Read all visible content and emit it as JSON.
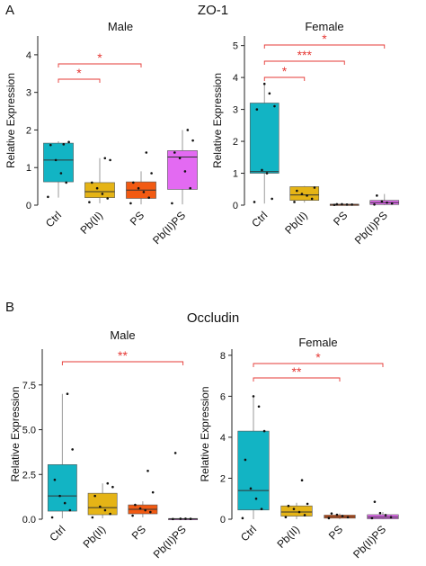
{
  "figure": {
    "panel_a_letter": "A",
    "panel_a_title": "ZO-1",
    "panel_b_letter": "B",
    "panel_b_title": "Occludin"
  },
  "colors": {
    "Ctrl": "#12B4C4",
    "Pb(II)": "#E5B416",
    "PS": "#F25A12",
    "Pb(II)PS": "#E36AF2",
    "significance": "#E53935",
    "axis": "#222222",
    "box_edge": "#555555"
  },
  "chart_data": [
    {
      "type": "box",
      "title": "Male",
      "ylabel": "Relative Expression",
      "categories": [
        "Ctrl",
        "Pb(II)",
        "PS",
        "Pb(II)PS"
      ],
      "ylim": [
        0,
        4.5
      ],
      "yticks": [
        0,
        1,
        2,
        3,
        4
      ],
      "ytick_labels": [
        "0",
        "1",
        "2",
        "3",
        "4"
      ],
      "boxes": [
        {
          "q1": 0.62,
          "median": 1.2,
          "q3": 1.65,
          "wmin": 0.2,
          "wmax": 1.7,
          "points": [
            0.22,
            0.6,
            0.85,
            1.2,
            1.6,
            1.68,
            1.62
          ]
        },
        {
          "q1": 0.2,
          "median": 0.36,
          "q3": 0.6,
          "wmin": 0.05,
          "wmax": 1.25,
          "points": [
            0.08,
            0.18,
            0.3,
            0.45,
            0.6,
            1.2,
            1.25
          ]
        },
        {
          "q1": 0.18,
          "median": 0.4,
          "q3": 0.62,
          "wmin": 0.02,
          "wmax": 0.9,
          "points": [
            0.05,
            0.2,
            0.35,
            0.45,
            0.6,
            0.85,
            1.4
          ]
        },
        {
          "q1": 0.42,
          "median": 1.28,
          "q3": 1.45,
          "wmin": 0.02,
          "wmax": 2.0,
          "points": [
            0.05,
            0.45,
            0.9,
            1.25,
            1.4,
            1.72,
            2.0
          ]
        }
      ],
      "significance": [
        {
          "from": "Ctrl",
          "to": "Pb(II)",
          "label": "*"
        },
        {
          "from": "Ctrl",
          "to": "PS",
          "label": "*"
        }
      ]
    },
    {
      "type": "box",
      "title": "Female",
      "ylabel": "Relative Expression",
      "categories": [
        "Ctrl",
        "Pb(II)",
        "PS",
        "Pb(II)PS"
      ],
      "ylim": [
        0,
        5.3
      ],
      "yticks": [
        0,
        1,
        2,
        3,
        4,
        5
      ],
      "ytick_labels": [
        "0",
        "1",
        "2",
        "3",
        "4",
        "5"
      ],
      "boxes": [
        {
          "q1": 1.0,
          "median": 1.05,
          "q3": 3.2,
          "wmin": 0.05,
          "wmax": 3.8,
          "points": [
            0.1,
            0.2,
            1.0,
            1.1,
            3.0,
            3.1,
            3.5,
            3.8
          ]
        },
        {
          "q1": 0.15,
          "median": 0.32,
          "q3": 0.58,
          "wmin": 0.08,
          "wmax": 0.6,
          "points": [
            0.1,
            0.2,
            0.3,
            0.35,
            0.45,
            0.55
          ]
        },
        {
          "q1": 0.01,
          "median": 0.02,
          "q3": 0.03,
          "wmin": 0.0,
          "wmax": 0.04,
          "points": [
            0.01,
            0.02,
            0.02,
            0.03,
            0.03
          ]
        },
        {
          "q1": 0.02,
          "median": 0.08,
          "q3": 0.15,
          "wmin": 0.0,
          "wmax": 0.35,
          "points": [
            0.02,
            0.05,
            0.08,
            0.12,
            0.3
          ]
        }
      ],
      "significance": [
        {
          "from": "Ctrl",
          "to": "Pb(II)",
          "label": "*"
        },
        {
          "from": "Ctrl",
          "to": "PS",
          "label": "***"
        },
        {
          "from": "Ctrl",
          "to": "Pb(II)PS",
          "label": "*"
        }
      ]
    },
    {
      "type": "box",
      "title": "Male",
      "ylabel": "Relative Expression",
      "categories": [
        "Ctrl",
        "Pb(II)",
        "PS",
        "Pb(II)PS"
      ],
      "ylim": [
        0,
        9.5
      ],
      "yticks": [
        0,
        2.5,
        5.0,
        7.5
      ],
      "ytick_labels": [
        "0.0",
        "2.5",
        "5.0",
        "7.5"
      ],
      "boxes": [
        {
          "q1": 0.45,
          "median": 1.3,
          "q3": 3.05,
          "wmin": 0.05,
          "wmax": 7.0,
          "points": [
            0.1,
            0.5,
            0.9,
            1.3,
            2.2,
            3.9,
            7.0
          ]
        },
        {
          "q1": 0.25,
          "median": 0.65,
          "q3": 1.45,
          "wmin": 0.05,
          "wmax": 2.0,
          "points": [
            0.1,
            0.3,
            0.5,
            0.7,
            1.3,
            1.8,
            2.0
          ]
        },
        {
          "q1": 0.3,
          "median": 0.55,
          "q3": 0.8,
          "wmin": 0.1,
          "wmax": 1.0,
          "points": [
            0.2,
            0.4,
            0.5,
            0.6,
            0.8,
            1.5,
            2.7
          ]
        },
        {
          "q1": 0.0,
          "median": 0.02,
          "q3": 0.04,
          "wmin": 0.0,
          "wmax": 0.05,
          "points": [
            0.01,
            0.02,
            0.03,
            0.03,
            3.7
          ]
        }
      ],
      "significance": [
        {
          "from": "Ctrl",
          "to": "Pb(II)PS",
          "label": "**"
        }
      ]
    },
    {
      "type": "box",
      "title": "Female",
      "ylabel": "Relative Expression",
      "categories": [
        "Ctrl",
        "Pb(II)",
        "PS",
        "Pb(II)PS"
      ],
      "ylim": [
        0,
        8.3
      ],
      "yticks": [
        0,
        2,
        4,
        6,
        8
      ],
      "ytick_labels": [
        "0",
        "2",
        "4",
        "6",
        "8"
      ],
      "boxes": [
        {
          "q1": 0.45,
          "median": 1.4,
          "q3": 4.3,
          "wmin": 0.0,
          "wmax": 6.0,
          "points": [
            0.05,
            0.5,
            1.0,
            1.5,
            2.9,
            4.3,
            5.5,
            6.0
          ]
        },
        {
          "q1": 0.15,
          "median": 0.35,
          "q3": 0.65,
          "wmin": 0.0,
          "wmax": 0.8,
          "points": [
            0.1,
            0.2,
            0.35,
            0.5,
            0.65,
            0.75,
            1.9
          ]
        },
        {
          "q1": 0.05,
          "median": 0.12,
          "q3": 0.2,
          "wmin": 0.0,
          "wmax": 0.28,
          "points": [
            0.05,
            0.1,
            0.15,
            0.22,
            0.28
          ]
        },
        {
          "q1": 0.02,
          "median": 0.1,
          "q3": 0.22,
          "wmin": 0.0,
          "wmax": 0.35,
          "points": [
            0.05,
            0.1,
            0.2,
            0.3,
            0.85
          ]
        }
      ],
      "significance": [
        {
          "from": "Ctrl",
          "to": "PS",
          "label": "**"
        },
        {
          "from": "Ctrl",
          "to": "Pb(II)PS",
          "label": "*"
        }
      ]
    }
  ]
}
